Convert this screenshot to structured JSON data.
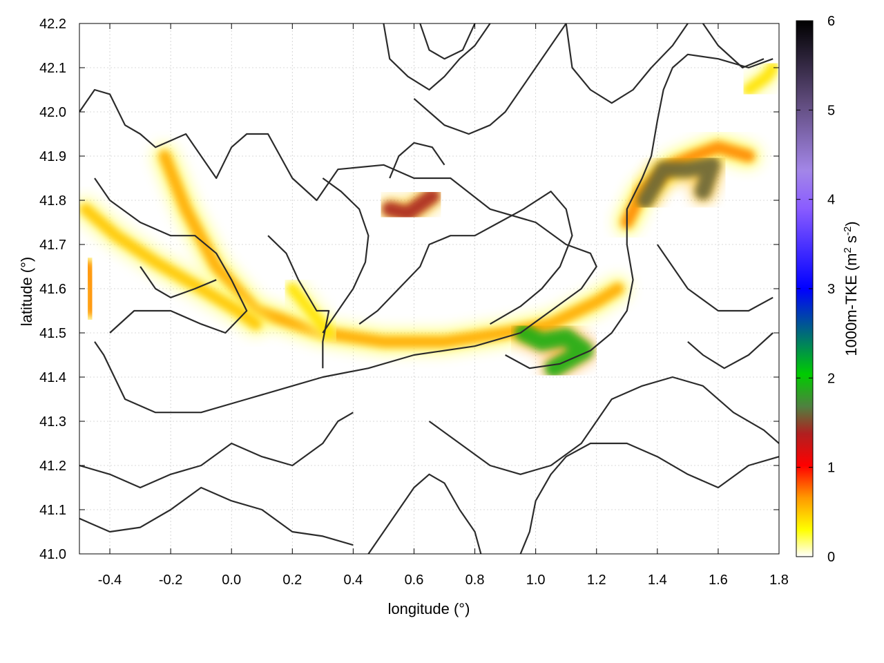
{
  "chart_data": {
    "type": "heatmap",
    "title": "",
    "xlabel": "longitude (°)",
    "ylabel": "latitude (°)",
    "xlim": [
      -0.5,
      1.8
    ],
    "ylim": [
      41.0,
      42.2
    ],
    "x_ticks": [
      "-0.4",
      "-0.2",
      "0.0",
      "0.2",
      "0.4",
      "0.6",
      "0.8",
      "1.0",
      "1.2",
      "1.4",
      "1.6",
      "1.8"
    ],
    "y_ticks": [
      "41.0",
      "41.1",
      "41.2",
      "41.3",
      "41.4",
      "41.5",
      "41.6",
      "41.7",
      "41.8",
      "41.9",
      "42.0",
      "42.1",
      "42.2"
    ],
    "grid": true,
    "colorbar": {
      "label_main": "1000m-TKE (m",
      "label_sup1": "2",
      "label_mid": " s",
      "label_sup2": "-2",
      "label_end": ")",
      "range": [
        0,
        6
      ],
      "ticks": [
        "0",
        "1",
        "2",
        "3",
        "4",
        "5",
        "6"
      ],
      "colors": [
        "#ffffff",
        "#ffff00",
        "#ff9900",
        "#ff0000",
        "#b02020",
        "#508040",
        "#00cc00",
        "#0000ff",
        "#8a5cff",
        "#a386e8",
        "#5e4a7a",
        "#000000"
      ]
    },
    "tke_features": [
      {
        "name": "main-band",
        "points": [
          [
            -0.22,
            41.9
          ],
          [
            -0.15,
            41.78
          ],
          [
            -0.05,
            41.65
          ],
          [
            0.08,
            41.55
          ],
          [
            0.3,
            41.5
          ],
          [
            0.5,
            41.48
          ],
          [
            0.7,
            41.48
          ],
          [
            0.9,
            41.5
          ],
          [
            1.05,
            41.52
          ],
          [
            1.2,
            41.57
          ],
          [
            1.27,
            41.6
          ]
        ],
        "value": 0.6
      },
      {
        "name": "west-band",
        "points": [
          [
            -0.48,
            41.78
          ],
          [
            -0.38,
            41.72
          ],
          [
            -0.25,
            41.66
          ],
          [
            -0.1,
            41.6
          ],
          [
            0.02,
            41.55
          ],
          [
            0.08,
            41.52
          ]
        ],
        "value": 0.5
      },
      {
        "name": "west-edge",
        "points": [
          [
            -0.47,
            41.65
          ],
          [
            -0.46,
            41.6
          ],
          [
            -0.46,
            41.55
          ]
        ],
        "value": 0.7
      },
      {
        "name": "central-arc",
        "points": [
          [
            0.2,
            41.6
          ],
          [
            0.26,
            41.55
          ],
          [
            0.32,
            41.5
          ]
        ],
        "value": 0.4
      },
      {
        "name": "north-blob",
        "points": [
          [
            0.52,
            41.78
          ],
          [
            0.58,
            41.77
          ],
          [
            0.66,
            41.81
          ]
        ],
        "value": 1.4
      },
      {
        "name": "north-east-arc",
        "points": [
          [
            1.3,
            41.75
          ],
          [
            1.35,
            41.82
          ],
          [
            1.45,
            41.88
          ],
          [
            1.52,
            41.9
          ],
          [
            1.6,
            41.92
          ],
          [
            1.7,
            41.9
          ]
        ],
        "value": 0.7
      },
      {
        "name": "north-east-blob",
        "points": [
          [
            1.36,
            41.8
          ],
          [
            1.42,
            41.87
          ],
          [
            1.5,
            41.87
          ],
          [
            1.58,
            41.88
          ],
          [
            1.55,
            41.82
          ]
        ],
        "value": 1.6
      },
      {
        "name": "east-blob",
        "points": [
          [
            0.96,
            41.5
          ],
          [
            1.02,
            41.48
          ],
          [
            1.1,
            41.49
          ],
          [
            1.16,
            41.46
          ],
          [
            1.06,
            41.42
          ]
        ],
        "value": 1.9
      },
      {
        "name": "mid-blob",
        "points": [
          [
            0.76,
            41.48
          ],
          [
            0.82,
            41.48
          ]
        ],
        "value": 1.2
      },
      {
        "name": "far-ne-streak",
        "points": [
          [
            1.7,
            42.05
          ],
          [
            1.76,
            42.08
          ],
          [
            1.78,
            42.1
          ]
        ],
        "value": 0.4
      }
    ],
    "contours": [
      [
        [
          -0.5,
          42.0
        ],
        [
          -0.45,
          42.05
        ],
        [
          -0.4,
          42.04
        ],
        [
          -0.35,
          41.97
        ],
        [
          -0.3,
          41.95
        ],
        [
          -0.25,
          41.92
        ],
        [
          -0.15,
          41.95
        ],
        [
          -0.1,
          41.9
        ],
        [
          -0.05,
          41.85
        ],
        [
          0.0,
          41.92
        ],
        [
          0.05,
          41.95
        ],
        [
          0.12,
          41.95
        ],
        [
          0.2,
          41.85
        ],
        [
          0.28,
          41.8
        ],
        [
          0.35,
          41.87
        ],
        [
          0.5,
          41.88
        ],
        [
          0.6,
          41.85
        ],
        [
          0.72,
          41.85
        ],
        [
          0.85,
          41.78
        ],
        [
          1.0,
          41.75
        ],
        [
          1.1,
          41.7
        ],
        [
          1.18,
          41.68
        ],
        [
          1.2,
          41.65
        ],
        [
          1.15,
          41.6
        ],
        [
          1.05,
          41.55
        ],
        [
          0.95,
          41.5
        ],
        [
          0.8,
          41.47
        ],
        [
          0.6,
          41.45
        ],
        [
          0.45,
          41.42
        ],
        [
          0.3,
          41.4
        ],
        [
          0.2,
          41.38
        ],
        [
          0.05,
          41.35
        ],
        [
          -0.1,
          41.32
        ],
        [
          -0.25,
          41.32
        ],
        [
          -0.35,
          41.35
        ],
        [
          -0.42,
          41.45
        ],
        [
          -0.45,
          41.48
        ]
      ],
      [
        [
          -0.45,
          41.85
        ],
        [
          -0.4,
          41.8
        ],
        [
          -0.3,
          41.75
        ],
        [
          -0.2,
          41.72
        ],
        [
          -0.12,
          41.72
        ],
        [
          -0.05,
          41.68
        ],
        [
          0.0,
          41.62
        ],
        [
          0.05,
          41.55
        ],
        [
          -0.02,
          41.5
        ],
        [
          -0.1,
          41.52
        ],
        [
          -0.2,
          41.55
        ],
        [
          -0.32,
          41.55
        ],
        [
          -0.4,
          41.5
        ]
      ],
      [
        [
          0.12,
          41.72
        ],
        [
          0.18,
          41.68
        ],
        [
          0.22,
          41.62
        ],
        [
          0.28,
          41.55
        ],
        [
          0.32,
          41.55
        ],
        [
          0.3,
          41.48
        ],
        [
          0.3,
          41.42
        ]
      ],
      [
        [
          0.3,
          41.85
        ],
        [
          0.36,
          41.82
        ],
        [
          0.42,
          41.78
        ],
        [
          0.45,
          41.72
        ],
        [
          0.44,
          41.66
        ],
        [
          0.4,
          41.6
        ],
        [
          0.35,
          41.55
        ],
        [
          0.3,
          41.5
        ]
      ],
      [
        [
          0.42,
          41.52
        ],
        [
          0.48,
          41.55
        ],
        [
          0.55,
          41.6
        ],
        [
          0.62,
          41.65
        ],
        [
          0.65,
          41.7
        ],
        [
          0.72,
          41.72
        ],
        [
          0.8,
          41.72
        ],
        [
          0.88,
          41.75
        ],
        [
          0.96,
          41.78
        ],
        [
          1.05,
          41.82
        ],
        [
          1.1,
          41.78
        ],
        [
          1.12,
          41.72
        ],
        [
          1.08,
          41.65
        ],
        [
          1.02,
          41.6
        ],
        [
          0.95,
          41.56
        ],
        [
          0.85,
          41.52
        ]
      ],
      [
        [
          0.9,
          41.45
        ],
        [
          0.98,
          41.42
        ],
        [
          1.08,
          41.43
        ],
        [
          1.18,
          41.46
        ],
        [
          1.25,
          41.5
        ],
        [
          1.3,
          41.55
        ],
        [
          1.32,
          41.62
        ],
        [
          1.3,
          41.7
        ],
        [
          1.3,
          41.78
        ],
        [
          1.35,
          41.85
        ],
        [
          1.38,
          41.9
        ],
        [
          1.4,
          41.98
        ],
        [
          1.42,
          42.05
        ],
        [
          1.45,
          42.1
        ],
        [
          1.5,
          42.13
        ],
        [
          1.6,
          42.12
        ],
        [
          1.7,
          42.1
        ],
        [
          1.78,
          42.12
        ]
      ],
      [
        [
          1.4,
          41.7
        ],
        [
          1.45,
          41.65
        ],
        [
          1.5,
          41.6
        ],
        [
          1.6,
          41.55
        ],
        [
          1.7,
          41.55
        ],
        [
          1.78,
          41.58
        ]
      ],
      [
        [
          0.65,
          41.3
        ],
        [
          0.75,
          41.25
        ],
        [
          0.85,
          41.2
        ],
        [
          0.95,
          41.18
        ],
        [
          1.05,
          41.2
        ],
        [
          1.15,
          41.25
        ],
        [
          1.2,
          41.3
        ],
        [
          1.25,
          41.35
        ],
        [
          1.35,
          41.38
        ],
        [
          1.45,
          41.4
        ],
        [
          1.55,
          41.38
        ],
        [
          1.65,
          41.32
        ],
        [
          1.75,
          41.28
        ],
        [
          1.8,
          41.25
        ]
      ],
      [
        [
          0.95,
          41.0
        ],
        [
          0.98,
          41.05
        ],
        [
          1.0,
          41.12
        ],
        [
          1.05,
          41.18
        ],
        [
          1.1,
          41.22
        ],
        [
          1.18,
          41.25
        ],
        [
          1.3,
          41.25
        ],
        [
          1.4,
          41.22
        ],
        [
          1.5,
          41.18
        ],
        [
          1.6,
          41.15
        ],
        [
          1.7,
          41.2
        ],
        [
          1.8,
          41.22
        ]
      ],
      [
        [
          -0.5,
          41.2
        ],
        [
          -0.4,
          41.18
        ],
        [
          -0.3,
          41.15
        ],
        [
          -0.2,
          41.18
        ],
        [
          -0.1,
          41.2
        ],
        [
          0.0,
          41.25
        ],
        [
          0.1,
          41.22
        ],
        [
          0.2,
          41.2
        ],
        [
          0.3,
          41.25
        ],
        [
          0.35,
          41.3
        ],
        [
          0.4,
          41.32
        ]
      ],
      [
        [
          -0.5,
          41.08
        ],
        [
          -0.4,
          41.05
        ],
        [
          -0.3,
          41.06
        ],
        [
          -0.2,
          41.1
        ],
        [
          -0.1,
          41.15
        ],
        [
          0.0,
          41.12
        ],
        [
          0.1,
          41.1
        ],
        [
          0.2,
          41.05
        ],
        [
          0.3,
          41.04
        ],
        [
          0.4,
          41.02
        ]
      ],
      [
        [
          0.45,
          41.0
        ],
        [
          0.5,
          41.05
        ],
        [
          0.55,
          41.1
        ],
        [
          0.6,
          41.15
        ],
        [
          0.65,
          41.18
        ],
        [
          0.7,
          41.16
        ],
        [
          0.75,
          41.1
        ],
        [
          0.8,
          41.05
        ],
        [
          0.82,
          41.0
        ]
      ],
      [
        [
          0.5,
          42.2
        ],
        [
          0.52,
          42.12
        ],
        [
          0.58,
          42.08
        ],
        [
          0.65,
          42.05
        ],
        [
          0.7,
          42.08
        ],
        [
          0.75,
          42.12
        ],
        [
          0.8,
          42.15
        ],
        [
          0.85,
          42.2
        ]
      ],
      [
        [
          0.62,
          42.2
        ],
        [
          0.65,
          42.14
        ],
        [
          0.7,
          42.12
        ],
        [
          0.76,
          42.14
        ],
        [
          0.8,
          42.2
        ]
      ],
      [
        [
          0.6,
          42.03
        ],
        [
          0.65,
          42.0
        ],
        [
          0.7,
          41.97
        ],
        [
          0.78,
          41.95
        ],
        [
          0.85,
          41.97
        ],
        [
          0.9,
          42.0
        ],
        [
          0.95,
          42.05
        ],
        [
          1.0,
          42.1
        ],
        [
          1.05,
          42.15
        ],
        [
          1.1,
          42.2
        ]
      ],
      [
        [
          1.1,
          42.2
        ],
        [
          1.12,
          42.1
        ],
        [
          1.18,
          42.05
        ],
        [
          1.25,
          42.02
        ],
        [
          1.32,
          42.05
        ],
        [
          1.38,
          42.1
        ],
        [
          1.45,
          42.15
        ],
        [
          1.5,
          42.2
        ]
      ],
      [
        [
          1.55,
          42.2
        ],
        [
          1.6,
          42.15
        ],
        [
          1.68,
          42.1
        ],
        [
          1.75,
          42.12
        ]
      ],
      [
        [
          -0.3,
          41.65
        ],
        [
          -0.25,
          41.6
        ],
        [
          -0.2,
          41.58
        ],
        [
          -0.12,
          41.6
        ],
        [
          -0.05,
          41.62
        ]
      ],
      [
        [
          0.52,
          41.85
        ],
        [
          0.55,
          41.9
        ],
        [
          0.6,
          41.93
        ],
        [
          0.66,
          41.92
        ],
        [
          0.7,
          41.88
        ]
      ],
      [
        [
          1.5,
          41.48
        ],
        [
          1.55,
          41.45
        ],
        [
          1.62,
          41.42
        ],
        [
          1.7,
          41.45
        ],
        [
          1.78,
          41.5
        ]
      ]
    ]
  }
}
